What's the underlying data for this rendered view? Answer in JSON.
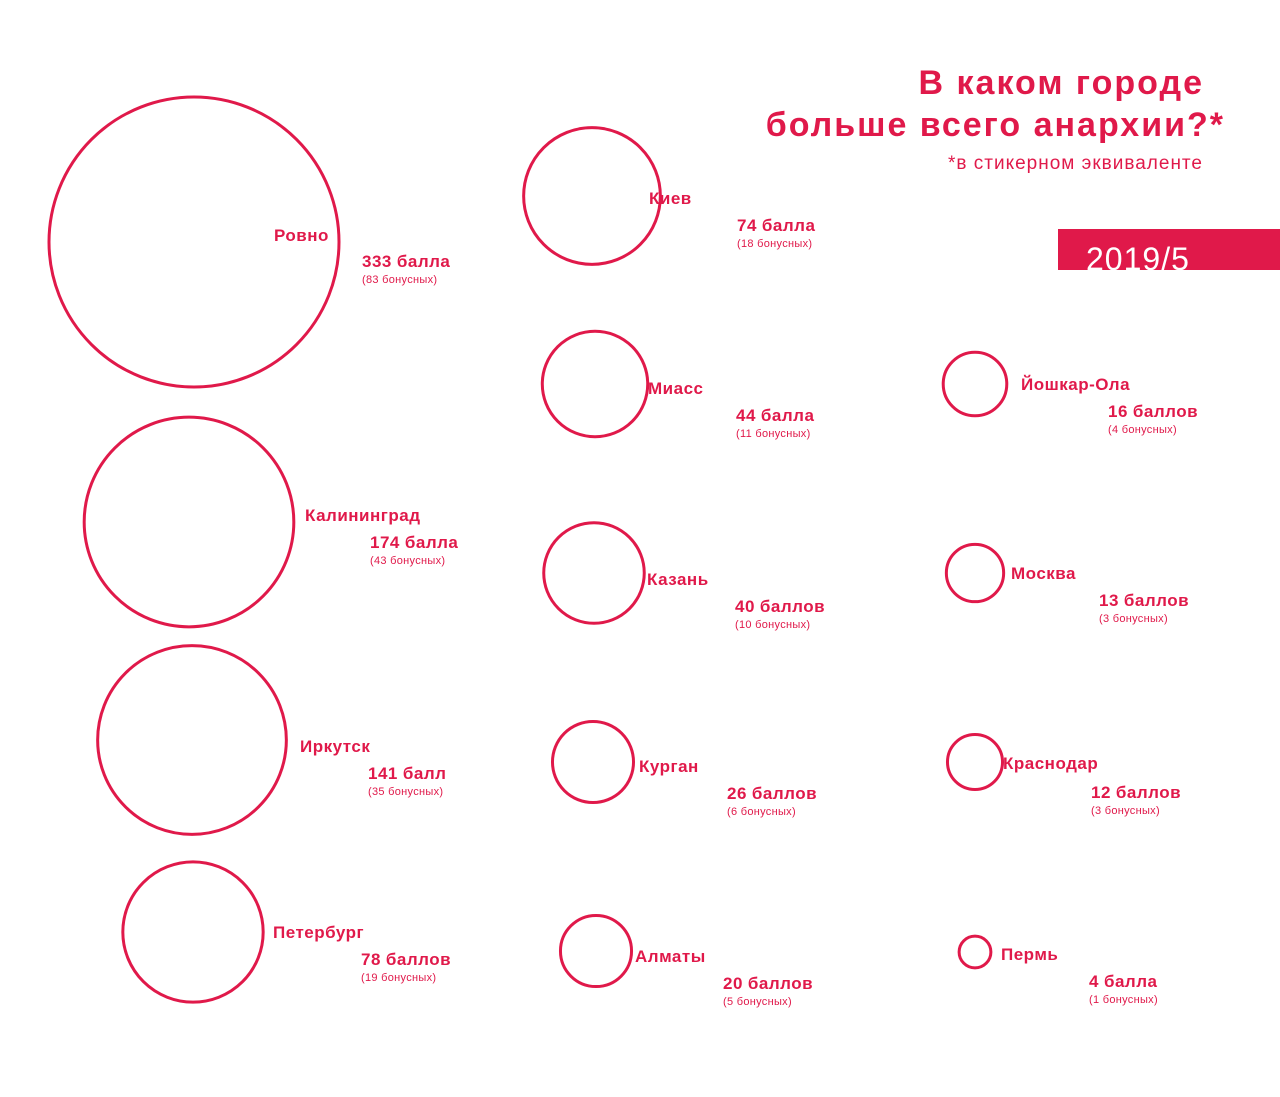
{
  "title_line1": "В каком городе",
  "title_line2": "больше всего анархии?*",
  "footnote": "*в стикерном эквиваленте",
  "badge": "2019/5",
  "colors": {
    "accent": "#e0194a",
    "background": "#ffffff"
  },
  "chart_data": {
    "type": "bubble",
    "encoding": "circle area proportional to points",
    "entries": [
      {
        "city": "Ровно",
        "points": 333,
        "points_num": "333",
        "points_unit": "балла",
        "bonus": 83,
        "bonus_label": "(83 бонусных)"
      },
      {
        "city": "Калининград",
        "points": 174,
        "points_num": "174",
        "points_unit": "балла",
        "bonus": 43,
        "bonus_label": "(43 бонусных)"
      },
      {
        "city": "Иркутск",
        "points": 141,
        "points_num": "141",
        "points_unit": "балл",
        "bonus": 35,
        "bonus_label": "(35 бонусных)"
      },
      {
        "city": "Петербург",
        "points": 78,
        "points_num": "78",
        "points_unit": "баллов",
        "bonus": 19,
        "bonus_label": "(19 бонусных)"
      },
      {
        "city": "Киев",
        "points": 74,
        "points_num": "74",
        "points_unit": "балла",
        "bonus": 18,
        "bonus_label": "(18 бонусных)"
      },
      {
        "city": "Миасс",
        "points": 44,
        "points_num": "44",
        "points_unit": "балла",
        "bonus": 11,
        "bonus_label": "(11 бонусных)"
      },
      {
        "city": "Казань",
        "points": 40,
        "points_num": "40",
        "points_unit": "баллов",
        "bonus": 10,
        "bonus_label": "(10 бонусных)"
      },
      {
        "city": "Курган",
        "points": 26,
        "points_num": "26",
        "points_unit": "баллов",
        "bonus": 6,
        "bonus_label": "(6 бонусных)"
      },
      {
        "city": "Алматы",
        "points": 20,
        "points_num": "20",
        "points_unit": "баллов",
        "bonus": 5,
        "bonus_label": "(5 бонусных)"
      },
      {
        "city": "Йошкар-Ола",
        "points": 16,
        "points_num": "16",
        "points_unit": "баллов",
        "bonus": 4,
        "bonus_label": "(4 бонусных)"
      },
      {
        "city": "Москва",
        "points": 13,
        "points_num": "13",
        "points_unit": "баллов",
        "bonus": 3,
        "bonus_label": "(3 бонусных)"
      },
      {
        "city": "Краснодар",
        "points": 12,
        "points_num": "12",
        "points_unit": "баллов",
        "bonus": 3,
        "bonus_label": "(3 бонусных)"
      },
      {
        "city": "Пермь",
        "points": 4,
        "points_num": "4",
        "points_unit": "балла",
        "bonus": 1,
        "bonus_label": "(1 бонусных)"
      }
    ]
  }
}
